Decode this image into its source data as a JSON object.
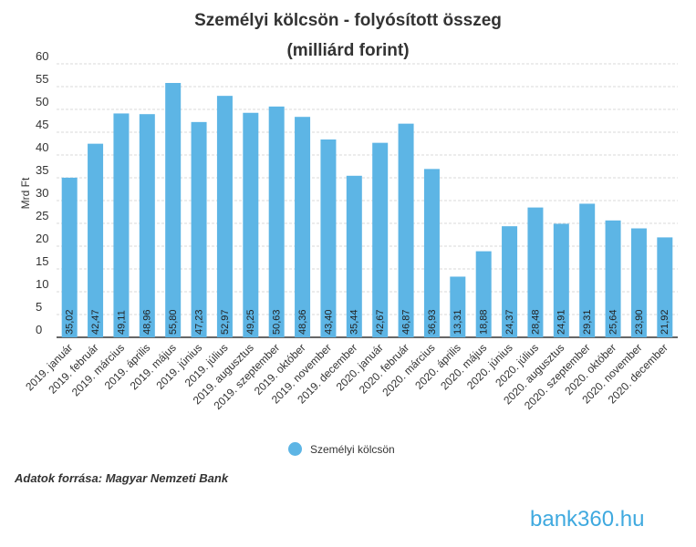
{
  "chart_data": {
    "type": "bar",
    "title": "Személyi kölcsön - folyósított összeg",
    "subtitle": "(milliárd forint)",
    "ylabel": "Mrd Ft",
    "xlabel": "",
    "ylim": [
      0,
      60
    ],
    "yticks": [
      0,
      5,
      10,
      15,
      20,
      25,
      30,
      35,
      40,
      45,
      50,
      55,
      60
    ],
    "grid": true,
    "legend_position": "bottom",
    "categories": [
      "2019. január",
      "2019. február",
      "2019. március",
      "2019. április",
      "2019. május",
      "2019. június",
      "2019. július",
      "2019. augusztus",
      "2019. szeptember",
      "2019. október",
      "2019. november",
      "2019. december",
      "2020. január",
      "2020. február",
      "2020. március",
      "2020. április",
      "2020. május",
      "2020. június",
      "2020. július",
      "2020. augusztus",
      "2020. szeptember",
      "2020. október",
      "2020. november",
      "2020. december"
    ],
    "series": [
      {
        "name": "Személyi kölcsön",
        "color": "#5db5e5",
        "values": [
          35.02,
          42.47,
          49.11,
          48.96,
          55.8,
          47.23,
          52.97,
          49.25,
          50.63,
          48.36,
          43.4,
          35.44,
          42.67,
          46.87,
          36.93,
          13.31,
          18.88,
          24.37,
          28.48,
          24.91,
          29.31,
          25.64,
          23.9,
          21.92
        ],
        "labels": [
          "35,02",
          "42,47",
          "49,11",
          "48,96",
          "55,80",
          "47,23",
          "52,97",
          "49,25",
          "50,63",
          "48,36",
          "43,40",
          "35,44",
          "42,67",
          "46,87",
          "36,93",
          "13,31",
          "18,88",
          "24,37",
          "28,48",
          "24,91",
          "29,31",
          "25,64",
          "23,90",
          "21,92"
        ]
      }
    ]
  },
  "source_text": "Adatok forrása: Magyar Nemzeti Bank",
  "logo_text": "bank360.hu"
}
